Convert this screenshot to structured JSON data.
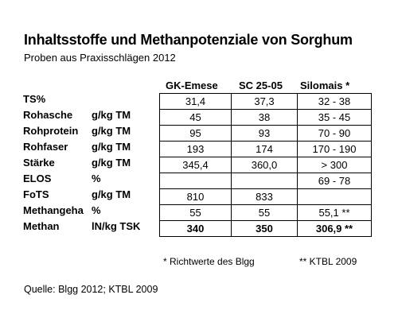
{
  "title": "Inhaltsstoffe und Methanpotenziale von Sorghum",
  "subtitle": "Proben aus Praxisschlägen 2012",
  "columns": [
    "GK-Emese",
    "SC 25-05",
    "Silomais *"
  ],
  "rows": [
    {
      "label": "TS%",
      "unit": "",
      "values": [
        "31,4",
        "37,3",
        "32 - 38"
      ]
    },
    {
      "label": "Rohasche",
      "unit": "g/kg TM",
      "values": [
        "45",
        "38",
        "35 - 45"
      ]
    },
    {
      "label": "Rohprotein",
      "unit": "g/kg TM",
      "values": [
        "95",
        "93",
        "70 - 90"
      ]
    },
    {
      "label": "Rohfaser",
      "unit": "g/kg TM",
      "values": [
        "193",
        "174",
        "170 - 190"
      ]
    },
    {
      "label": "Stärke",
      "unit": "g/kg TM",
      "values": [
        "345,4",
        "360,0",
        "> 300"
      ]
    },
    {
      "label": "ELOS",
      "unit": "%",
      "values": [
        "",
        "",
        "69 - 78"
      ]
    },
    {
      "label": "FoTS",
      "unit": "g/kg TM",
      "values": [
        "810",
        "833",
        ""
      ]
    },
    {
      "label": "Methangeha",
      "unit": "%",
      "values": [
        "55",
        "55",
        "55,1 **"
      ]
    },
    {
      "label": "Methan",
      "unit": "lN/kg TSK",
      "values": [
        "340",
        "350",
        "306,9 **"
      ]
    }
  ],
  "footnote_single": "* Richtwerte des Blgg",
  "footnote_double": "** KTBL 2009",
  "source": "Quelle: Blgg 2012; KTBL 2009"
}
